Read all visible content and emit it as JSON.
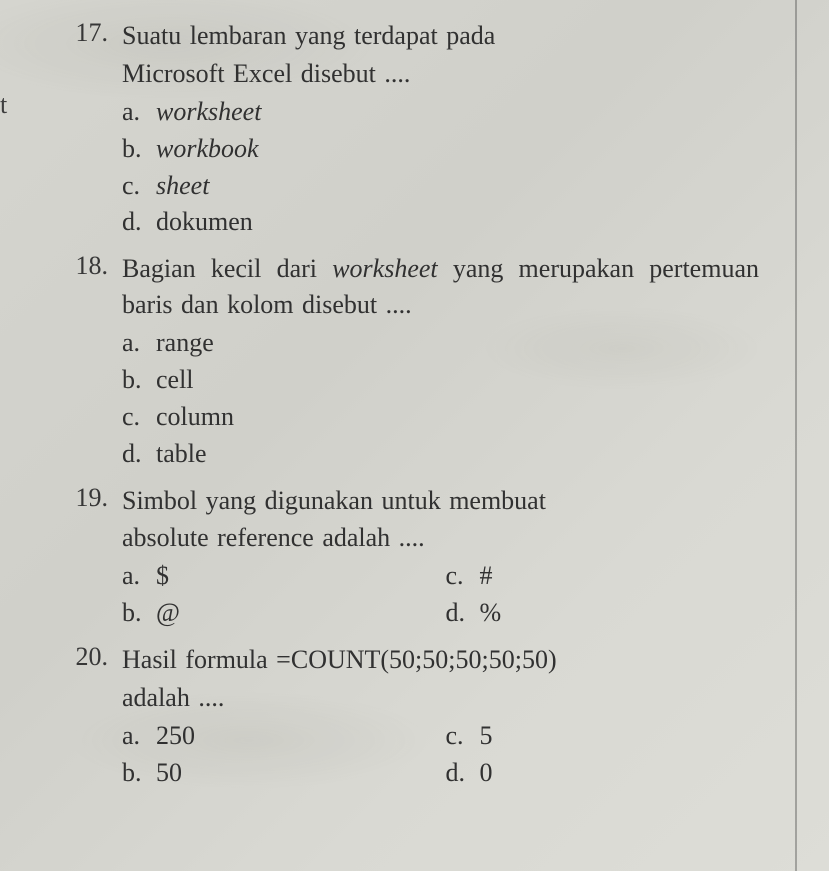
{
  "leftEdgeChar": "t",
  "questions": [
    {
      "number": "17.",
      "stem_lines": [
        "Suatu lembaran yang terdapat pada",
        "Microsoft Excel disebut ...."
      ],
      "options": [
        {
          "letter": "a.",
          "text": "worksheet",
          "italic": true
        },
        {
          "letter": "b.",
          "text": "workbook",
          "italic": true
        },
        {
          "letter": "c.",
          "text": "sheet",
          "italic": true
        },
        {
          "letter": "d.",
          "text": "dokumen",
          "italic": false
        }
      ]
    },
    {
      "number": "18.",
      "stem_html": "Bagian kecil dari <i>worksheet</i> yang merupakan pertemuan baris dan kolom disebut ....",
      "options": [
        {
          "letter": "a.",
          "text": "range",
          "italic": false
        },
        {
          "letter": "b.",
          "text": "cell",
          "italic": false
        },
        {
          "letter": "c.",
          "text": "column",
          "italic": false
        },
        {
          "letter": "d.",
          "text": "table",
          "italic": false
        }
      ]
    },
    {
      "number": "19.",
      "stem_lines": [
        "Simbol yang digunakan untuk membuat",
        "absolute reference adalah ...."
      ],
      "left_options": [
        {
          "letter": "a.",
          "text": "$"
        },
        {
          "letter": "b.",
          "text": "@"
        }
      ],
      "right_options": [
        {
          "letter": "c.",
          "text": "#"
        },
        {
          "letter": "d.",
          "text": "%"
        }
      ]
    },
    {
      "number": "20.",
      "stem_lines": [
        "Hasil formula =COUNT(50;50;50;50;50)",
        "adalah ...."
      ],
      "left_options": [
        {
          "letter": "a.",
          "text": "250"
        },
        {
          "letter": "b.",
          "text": "50"
        }
      ],
      "right_options": [
        {
          "letter": "c.",
          "text": "5"
        },
        {
          "letter": "d.",
          "text": "0"
        }
      ]
    }
  ]
}
